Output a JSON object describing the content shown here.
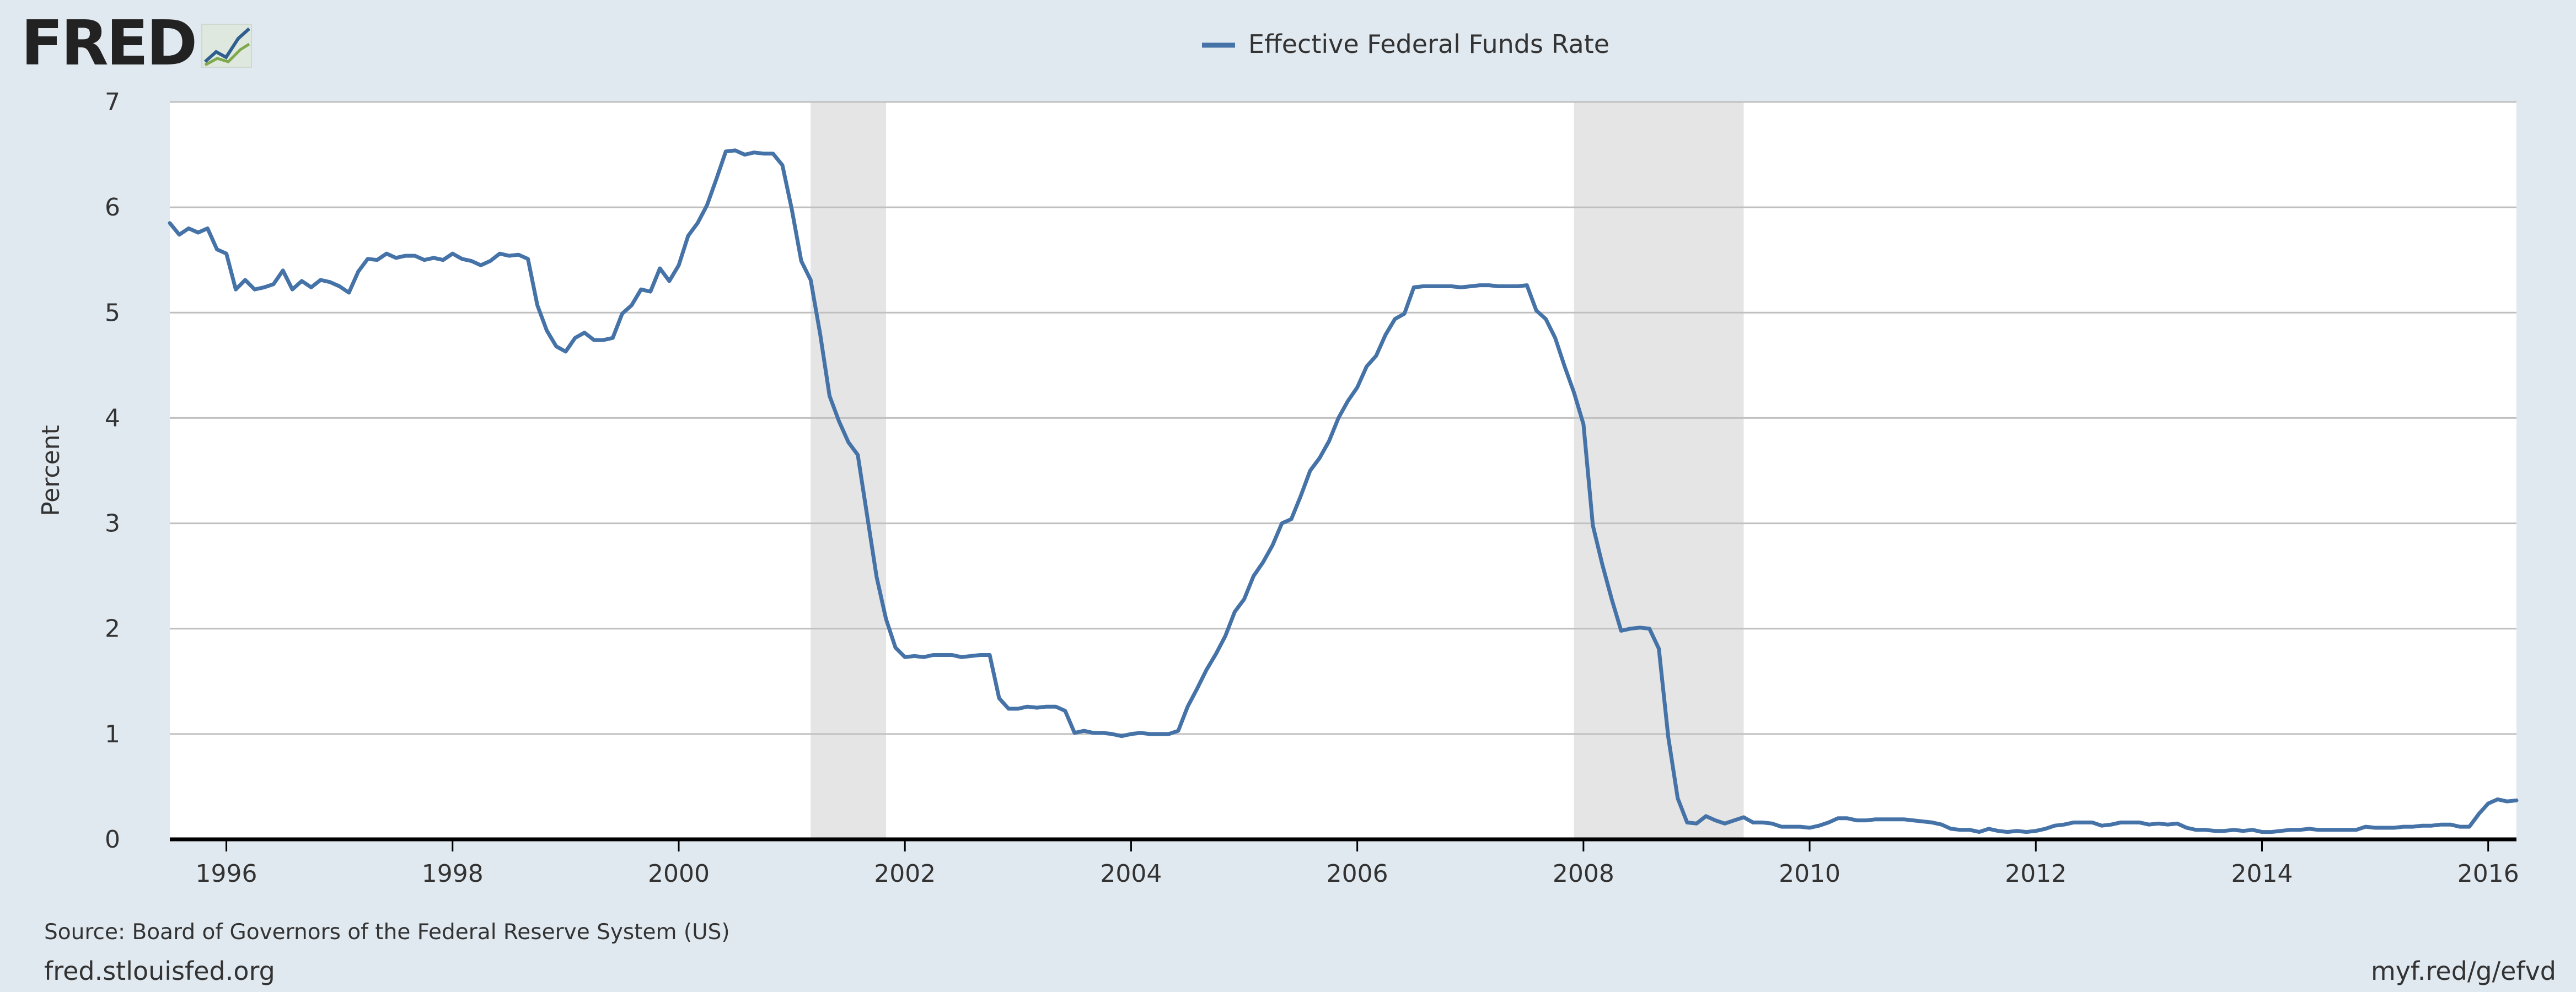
{
  "header": {
    "logo_text": "FRED",
    "logo_icon": "fred-chart-icon"
  },
  "footer": {
    "source": "Source: Board of Governors of the Federal Reserve System (US)",
    "site": "fred.stlouisfed.org",
    "short_link": "myf.red/g/efvd"
  },
  "colors": {
    "series": "#4572a7",
    "recession": "#e5e5e5",
    "grid": "#c0c0c0",
    "plot_bg": "#ffffff",
    "page_bg": "#e1e9f0",
    "logo": "#222222"
  },
  "chart_data": {
    "type": "line",
    "title": "",
    "xlabel": "",
    "ylabel": "Percent",
    "legend_position": "top-center",
    "grid": true,
    "xlim": [
      "1995-07",
      "2016-04"
    ],
    "ylim": [
      0,
      7
    ],
    "yticks": [
      "0",
      "1",
      "2",
      "3",
      "4",
      "5",
      "6",
      "7"
    ],
    "xticks": [
      "1996",
      "1998",
      "2000",
      "2002",
      "2004",
      "2006",
      "2008",
      "2010",
      "2012",
      "2014",
      "2016"
    ],
    "recessions": [
      [
        "2001-03",
        "2001-11"
      ],
      [
        "2007-12",
        "2009-06"
      ]
    ],
    "series": [
      {
        "name": "Effective Federal Funds Rate",
        "points": [
          [
            "1995-07",
            5.85
          ],
          [
            "1995-08",
            5.74
          ],
          [
            "1995-09",
            5.8
          ],
          [
            "1995-10",
            5.76
          ],
          [
            "1995-11",
            5.8
          ],
          [
            "1995-12",
            5.6
          ],
          [
            "1996-01",
            5.56
          ],
          [
            "1996-02",
            5.22
          ],
          [
            "1996-03",
            5.31
          ],
          [
            "1996-04",
            5.22
          ],
          [
            "1996-05",
            5.24
          ],
          [
            "1996-06",
            5.27
          ],
          [
            "1996-07",
            5.4
          ],
          [
            "1996-08",
            5.22
          ],
          [
            "1996-09",
            5.3
          ],
          [
            "1996-10",
            5.24
          ],
          [
            "1996-11",
            5.31
          ],
          [
            "1996-12",
            5.29
          ],
          [
            "1997-01",
            5.25
          ],
          [
            "1997-02",
            5.19
          ],
          [
            "1997-03",
            5.39
          ],
          [
            "1997-04",
            5.51
          ],
          [
            "1997-05",
            5.5
          ],
          [
            "1997-06",
            5.56
          ],
          [
            "1997-07",
            5.52
          ],
          [
            "1997-08",
            5.54
          ],
          [
            "1997-09",
            5.54
          ],
          [
            "1997-10",
            5.5
          ],
          [
            "1997-11",
            5.52
          ],
          [
            "1997-12",
            5.5
          ],
          [
            "1998-01",
            5.56
          ],
          [
            "1998-02",
            5.51
          ],
          [
            "1998-03",
            5.49
          ],
          [
            "1998-04",
            5.45
          ],
          [
            "1998-05",
            5.49
          ],
          [
            "1998-06",
            5.56
          ],
          [
            "1998-07",
            5.54
          ],
          [
            "1998-08",
            5.55
          ],
          [
            "1998-09",
            5.51
          ],
          [
            "1998-10",
            5.07
          ],
          [
            "1998-11",
            4.83
          ],
          [
            "1998-12",
            4.68
          ],
          [
            "1999-01",
            4.63
          ],
          [
            "1999-02",
            4.76
          ],
          [
            "1999-03",
            4.81
          ],
          [
            "1999-04",
            4.74
          ],
          [
            "1999-05",
            4.74
          ],
          [
            "1999-06",
            4.76
          ],
          [
            "1999-07",
            4.99
          ],
          [
            "1999-08",
            5.07
          ],
          [
            "1999-09",
            5.22
          ],
          [
            "1999-10",
            5.2
          ],
          [
            "1999-11",
            5.42
          ],
          [
            "1999-12",
            5.3
          ],
          [
            "2000-01",
            5.45
          ],
          [
            "2000-02",
            5.73
          ],
          [
            "2000-03",
            5.85
          ],
          [
            "2000-04",
            6.02
          ],
          [
            "2000-05",
            6.27
          ],
          [
            "2000-06",
            6.53
          ],
          [
            "2000-07",
            6.54
          ],
          [
            "2000-08",
            6.5
          ],
          [
            "2000-09",
            6.52
          ],
          [
            "2000-10",
            6.51
          ],
          [
            "2000-11",
            6.51
          ],
          [
            "2000-12",
            6.4
          ],
          [
            "2001-01",
            5.98
          ],
          [
            "2001-02",
            5.49
          ],
          [
            "2001-03",
            5.31
          ],
          [
            "2001-04",
            4.8
          ],
          [
            "2001-05",
            4.21
          ],
          [
            "2001-06",
            3.97
          ],
          [
            "2001-07",
            3.77
          ],
          [
            "2001-08",
            3.65
          ],
          [
            "2001-09",
            3.07
          ],
          [
            "2001-10",
            2.49
          ],
          [
            "2001-11",
            2.09
          ],
          [
            "2001-12",
            1.82
          ],
          [
            "2002-01",
            1.73
          ],
          [
            "2002-02",
            1.74
          ],
          [
            "2002-03",
            1.73
          ],
          [
            "2002-04",
            1.75
          ],
          [
            "2002-05",
            1.75
          ],
          [
            "2002-06",
            1.75
          ],
          [
            "2002-07",
            1.73
          ],
          [
            "2002-08",
            1.74
          ],
          [
            "2002-09",
            1.75
          ],
          [
            "2002-10",
            1.75
          ],
          [
            "2002-11",
            1.34
          ],
          [
            "2002-12",
            1.24
          ],
          [
            "2003-01",
            1.24
          ],
          [
            "2003-02",
            1.26
          ],
          [
            "2003-03",
            1.25
          ],
          [
            "2003-04",
            1.26
          ],
          [
            "2003-05",
            1.26
          ],
          [
            "2003-06",
            1.22
          ],
          [
            "2003-07",
            1.01
          ],
          [
            "2003-08",
            1.03
          ],
          [
            "2003-09",
            1.01
          ],
          [
            "2003-10",
            1.01
          ],
          [
            "2003-11",
            1.0
          ],
          [
            "2003-12",
            0.98
          ],
          [
            "2004-01",
            1.0
          ],
          [
            "2004-02",
            1.01
          ],
          [
            "2004-03",
            1.0
          ],
          [
            "2004-04",
            1.0
          ],
          [
            "2004-05",
            1.0
          ],
          [
            "2004-06",
            1.03
          ],
          [
            "2004-07",
            1.26
          ],
          [
            "2004-08",
            1.43
          ],
          [
            "2004-09",
            1.61
          ],
          [
            "2004-10",
            1.76
          ],
          [
            "2004-11",
            1.93
          ],
          [
            "2004-12",
            2.16
          ],
          [
            "2005-01",
            2.28
          ],
          [
            "2005-02",
            2.5
          ],
          [
            "2005-03",
            2.63
          ],
          [
            "2005-04",
            2.79
          ],
          [
            "2005-05",
            3.0
          ],
          [
            "2005-06",
            3.04
          ],
          [
            "2005-07",
            3.26
          ],
          [
            "2005-08",
            3.5
          ],
          [
            "2005-09",
            3.62
          ],
          [
            "2005-10",
            3.78
          ],
          [
            "2005-11",
            4.0
          ],
          [
            "2005-12",
            4.16
          ],
          [
            "2006-01",
            4.29
          ],
          [
            "2006-02",
            4.49
          ],
          [
            "2006-03",
            4.59
          ],
          [
            "2006-04",
            4.79
          ],
          [
            "2006-05",
            4.94
          ],
          [
            "2006-06",
            4.99
          ],
          [
            "2006-07",
            5.24
          ],
          [
            "2006-08",
            5.25
          ],
          [
            "2006-09",
            5.25
          ],
          [
            "2006-10",
            5.25
          ],
          [
            "2006-11",
            5.25
          ],
          [
            "2006-12",
            5.24
          ],
          [
            "2007-01",
            5.25
          ],
          [
            "2007-02",
            5.26
          ],
          [
            "2007-03",
            5.26
          ],
          [
            "2007-04",
            5.25
          ],
          [
            "2007-05",
            5.25
          ],
          [
            "2007-06",
            5.25
          ],
          [
            "2007-07",
            5.26
          ],
          [
            "2007-08",
            5.02
          ],
          [
            "2007-09",
            4.94
          ],
          [
            "2007-10",
            4.76
          ],
          [
            "2007-11",
            4.49
          ],
          [
            "2007-12",
            4.24
          ],
          [
            "2008-01",
            3.94
          ],
          [
            "2008-02",
            2.98
          ],
          [
            "2008-03",
            2.61
          ],
          [
            "2008-04",
            2.28
          ],
          [
            "2008-05",
            1.98
          ],
          [
            "2008-06",
            2.0
          ],
          [
            "2008-07",
            2.01
          ],
          [
            "2008-08",
            2.0
          ],
          [
            "2008-09",
            1.81
          ],
          [
            "2008-10",
            0.97
          ],
          [
            "2008-11",
            0.39
          ],
          [
            "2008-12",
            0.16
          ],
          [
            "2009-01",
            0.15
          ],
          [
            "2009-02",
            0.22
          ],
          [
            "2009-03",
            0.18
          ],
          [
            "2009-04",
            0.15
          ],
          [
            "2009-05",
            0.18
          ],
          [
            "2009-06",
            0.21
          ],
          [
            "2009-07",
            0.16
          ],
          [
            "2009-08",
            0.16
          ],
          [
            "2009-09",
            0.15
          ],
          [
            "2009-10",
            0.12
          ],
          [
            "2009-11",
            0.12
          ],
          [
            "2009-12",
            0.12
          ],
          [
            "2010-01",
            0.11
          ],
          [
            "2010-02",
            0.13
          ],
          [
            "2010-03",
            0.16
          ],
          [
            "2010-04",
            0.2
          ],
          [
            "2010-05",
            0.2
          ],
          [
            "2010-06",
            0.18
          ],
          [
            "2010-07",
            0.18
          ],
          [
            "2010-08",
            0.19
          ],
          [
            "2010-09",
            0.19
          ],
          [
            "2010-10",
            0.19
          ],
          [
            "2010-11",
            0.19
          ],
          [
            "2010-12",
            0.18
          ],
          [
            "2011-01",
            0.17
          ],
          [
            "2011-02",
            0.16
          ],
          [
            "2011-03",
            0.14
          ],
          [
            "2011-04",
            0.1
          ],
          [
            "2011-05",
            0.09
          ],
          [
            "2011-06",
            0.09
          ],
          [
            "2011-07",
            0.07
          ],
          [
            "2011-08",
            0.1
          ],
          [
            "2011-09",
            0.08
          ],
          [
            "2011-10",
            0.07
          ],
          [
            "2011-11",
            0.08
          ],
          [
            "2011-12",
            0.07
          ],
          [
            "2012-01",
            0.08
          ],
          [
            "2012-02",
            0.1
          ],
          [
            "2012-03",
            0.13
          ],
          [
            "2012-04",
            0.14
          ],
          [
            "2012-05",
            0.16
          ],
          [
            "2012-06",
            0.16
          ],
          [
            "2012-07",
            0.16
          ],
          [
            "2012-08",
            0.13
          ],
          [
            "2012-09",
            0.14
          ],
          [
            "2012-10",
            0.16
          ],
          [
            "2012-11",
            0.16
          ],
          [
            "2012-12",
            0.16
          ],
          [
            "2013-01",
            0.14
          ],
          [
            "2013-02",
            0.15
          ],
          [
            "2013-03",
            0.14
          ],
          [
            "2013-04",
            0.15
          ],
          [
            "2013-05",
            0.11
          ],
          [
            "2013-06",
            0.09
          ],
          [
            "2013-07",
            0.09
          ],
          [
            "2013-08",
            0.08
          ],
          [
            "2013-09",
            0.08
          ],
          [
            "2013-10",
            0.09
          ],
          [
            "2013-11",
            0.08
          ],
          [
            "2013-12",
            0.09
          ],
          [
            "2014-01",
            0.07
          ],
          [
            "2014-02",
            0.07
          ],
          [
            "2014-03",
            0.08
          ],
          [
            "2014-04",
            0.09
          ],
          [
            "2014-05",
            0.09
          ],
          [
            "2014-06",
            0.1
          ],
          [
            "2014-07",
            0.09
          ],
          [
            "2014-08",
            0.09
          ],
          [
            "2014-09",
            0.09
          ],
          [
            "2014-10",
            0.09
          ],
          [
            "2014-11",
            0.09
          ],
          [
            "2014-12",
            0.12
          ],
          [
            "2015-01",
            0.11
          ],
          [
            "2015-02",
            0.11
          ],
          [
            "2015-03",
            0.11
          ],
          [
            "2015-04",
            0.12
          ],
          [
            "2015-05",
            0.12
          ],
          [
            "2015-06",
            0.13
          ],
          [
            "2015-07",
            0.13
          ],
          [
            "2015-08",
            0.14
          ],
          [
            "2015-09",
            0.14
          ],
          [
            "2015-10",
            0.12
          ],
          [
            "2015-11",
            0.12
          ],
          [
            "2015-12",
            0.24
          ],
          [
            "2016-01",
            0.34
          ],
          [
            "2016-02",
            0.38
          ],
          [
            "2016-03",
            0.36
          ],
          [
            "2016-04",
            0.37
          ]
        ]
      }
    ]
  }
}
